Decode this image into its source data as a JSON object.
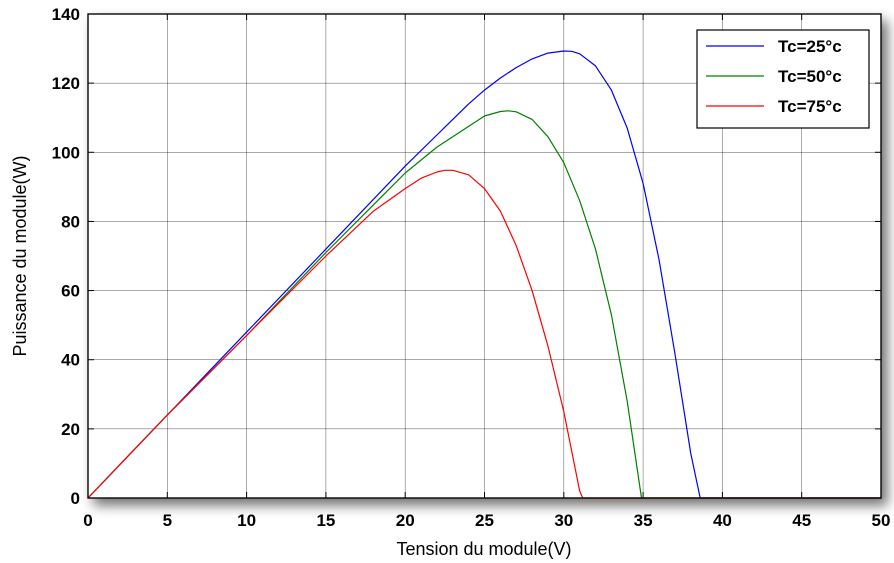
{
  "chart_data": {
    "type": "line",
    "xlabel": "Tension du module(V)",
    "ylabel": "Puissance du module(W)",
    "xlim": [
      0,
      50
    ],
    "ylim": [
      0,
      140
    ],
    "xticks": [
      "0",
      "5",
      "10",
      "15",
      "20",
      "25",
      "30",
      "35",
      "40",
      "45",
      "50"
    ],
    "yticks": [
      "0",
      "20",
      "40",
      "60",
      "80",
      "100",
      "120",
      "140"
    ],
    "grid": true,
    "legend_position": "top-right",
    "series": [
      {
        "name": "Tc=25°c",
        "color": "#0000ff",
        "x": [
          0,
          5,
          10,
          15,
          20,
          22,
          24,
          25,
          26,
          27,
          28,
          29,
          30,
          30.5,
          31,
          32,
          33,
          34,
          35,
          36,
          37,
          38,
          38.6,
          40,
          45,
          50
        ],
        "y": [
          0,
          24,
          48,
          72,
          96,
          105,
          114,
          118,
          121.5,
          124.5,
          127,
          128.7,
          129.3,
          129.2,
          128.5,
          125,
          118,
          107,
          91,
          69,
          42,
          13,
          0,
          0,
          0,
          0
        ]
      },
      {
        "name": "Tc=50°c",
        "color": "#008000",
        "x": [
          0,
          5,
          10,
          15,
          20,
          22,
          24,
          25,
          26,
          26.5,
          27,
          28,
          29,
          30,
          31,
          32,
          33,
          34,
          34.9,
          36,
          40,
          45,
          50
        ],
        "y": [
          0,
          24,
          47,
          71,
          94,
          101.5,
          107.5,
          110.5,
          111.8,
          112,
          111.7,
          109.5,
          104.5,
          97,
          86,
          72,
          53,
          28,
          0,
          0,
          0,
          0,
          0
        ]
      },
      {
        "name": "Tc=75°c",
        "color": "#ff0000",
        "x": [
          0,
          5,
          10,
          15,
          18,
          20,
          21,
          22,
          22.5,
          23,
          24,
          25,
          26,
          27,
          28,
          29,
          30,
          31,
          31.2,
          35,
          40,
          45,
          50
        ],
        "y": [
          0,
          24,
          47,
          70,
          83,
          89.5,
          92.5,
          94.3,
          94.8,
          94.8,
          93.5,
          89.5,
          83,
          73,
          60,
          44,
          25,
          2,
          0,
          0,
          0,
          0,
          0
        ]
      }
    ]
  }
}
